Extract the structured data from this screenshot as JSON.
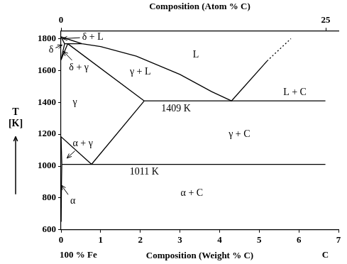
{
  "chart_data": {
    "type": "line",
    "xlabel": "Composition (Weight % C)",
    "x2label": "Composition (Atom % C)",
    "ylabel": "T [K]",
    "xlim": [
      0,
      7
    ],
    "xticks": [
      0,
      1,
      2,
      3,
      4,
      5,
      6,
      7
    ],
    "x2lim": [
      0,
      26.2
    ],
    "x2ticks": [
      0,
      25
    ],
    "ylim": [
      600,
      1850
    ],
    "yticks": [
      600,
      800,
      1000,
      1200,
      1400,
      1600,
      1800
    ],
    "grid": false,
    "series": [
      {
        "x": [
          0,
          0.53,
          1,
          1.9,
          3,
          3.8,
          4.3
        ],
        "y": [
          1811,
          1768,
          1750,
          1690,
          1575,
          1467,
          1409
        ],
        "color": "#000000",
        "line_style": "solid"
      },
      {
        "x": [
          0,
          0.09
        ],
        "y": [
          1811,
          1768
        ],
        "color": "#000000",
        "line_style": "solid"
      },
      {
        "x": [
          0.09,
          0.53
        ],
        "y": [
          1768,
          1768
        ],
        "color": "#000000",
        "line_style": "solid"
      },
      {
        "x": [
          0.17,
          2.1
        ],
        "y": [
          1768,
          1409
        ],
        "color": "#000000",
        "line_style": "solid"
      },
      {
        "x": [
          0.09,
          0
        ],
        "y": [
          1768,
          1667
        ],
        "color": "#000000",
        "line_style": "solid"
      },
      {
        "x": [
          0.17,
          0
        ],
        "y": [
          1768,
          1667
        ],
        "color": "#000000",
        "line_style": "solid"
      },
      {
        "x": [
          2.1,
          6.67
        ],
        "y": [
          1409,
          1409
        ],
        "color": "#000000",
        "line_style": "solid"
      },
      {
        "x": [
          4.3,
          5.2
        ],
        "y": [
          1409,
          1660
        ],
        "color": "#000000",
        "line_style": "solid"
      },
      {
        "x": [
          5.2,
          5.8
        ],
        "y": [
          1660,
          1800
        ],
        "color": "#000000",
        "line_style": "dotted"
      },
      {
        "x": [
          2.1,
          0.77
        ],
        "y": [
          1409,
          1011
        ],
        "color": "#000000",
        "line_style": "solid"
      },
      {
        "x": [
          0,
          0.77
        ],
        "y": [
          1184,
          1011
        ],
        "color": "#000000",
        "line_style": "solid"
      },
      {
        "x": [
          0.02,
          6.67
        ],
        "y": [
          1011,
          1011
        ],
        "color": "#000000",
        "line_style": "solid"
      },
      {
        "x": [
          0,
          0.02
        ],
        "y": [
          1184,
          1011
        ],
        "color": "#000000",
        "line_style": "solid"
      },
      {
        "x": [
          0.02,
          0.012,
          0.005,
          0
        ],
        "y": [
          1011,
          900,
          800,
          650
        ],
        "color": "#000000",
        "line_style": "solid"
      }
    ],
    "annotations": [
      {
        "text": "δ + L",
        "x": 0.8,
        "y": 1810,
        "arrow_to": [
          0.04,
          1800
        ]
      },
      {
        "text": "δ",
        "x": -0.25,
        "y": 1730,
        "arrow_to": [
          0.03,
          1760
        ]
      },
      {
        "text": "δ + γ",
        "x": 0.45,
        "y": 1620,
        "arrow_to": [
          0.06,
          1720
        ]
      },
      {
        "text": "L",
        "x": 3.4,
        "y": 1700
      },
      {
        "text": "γ + L",
        "x": 2.0,
        "y": 1590
      },
      {
        "text": "L + C",
        "x": 5.9,
        "y": 1460
      },
      {
        "text": "γ",
        "x": 0.35,
        "y": 1400
      },
      {
        "text": "1409 K",
        "x": 2.9,
        "y": 1360
      },
      {
        "text": "γ + C",
        "x": 4.5,
        "y": 1200
      },
      {
        "text": "α + γ",
        "x": 0.55,
        "y": 1140,
        "arrow_to": [
          0.15,
          1050
        ]
      },
      {
        "text": "1011 K",
        "x": 2.1,
        "y": 965
      },
      {
        "text": "α + C",
        "x": 3.3,
        "y": 830
      },
      {
        "text": "α",
        "x": 0.3,
        "y": 780,
        "arrow_to": [
          0.008,
          880
        ]
      }
    ],
    "axis_notes": [
      {
        "text": "100 % Fe",
        "x": 0
      },
      {
        "text": "C",
        "x": 6.67
      }
    ]
  }
}
